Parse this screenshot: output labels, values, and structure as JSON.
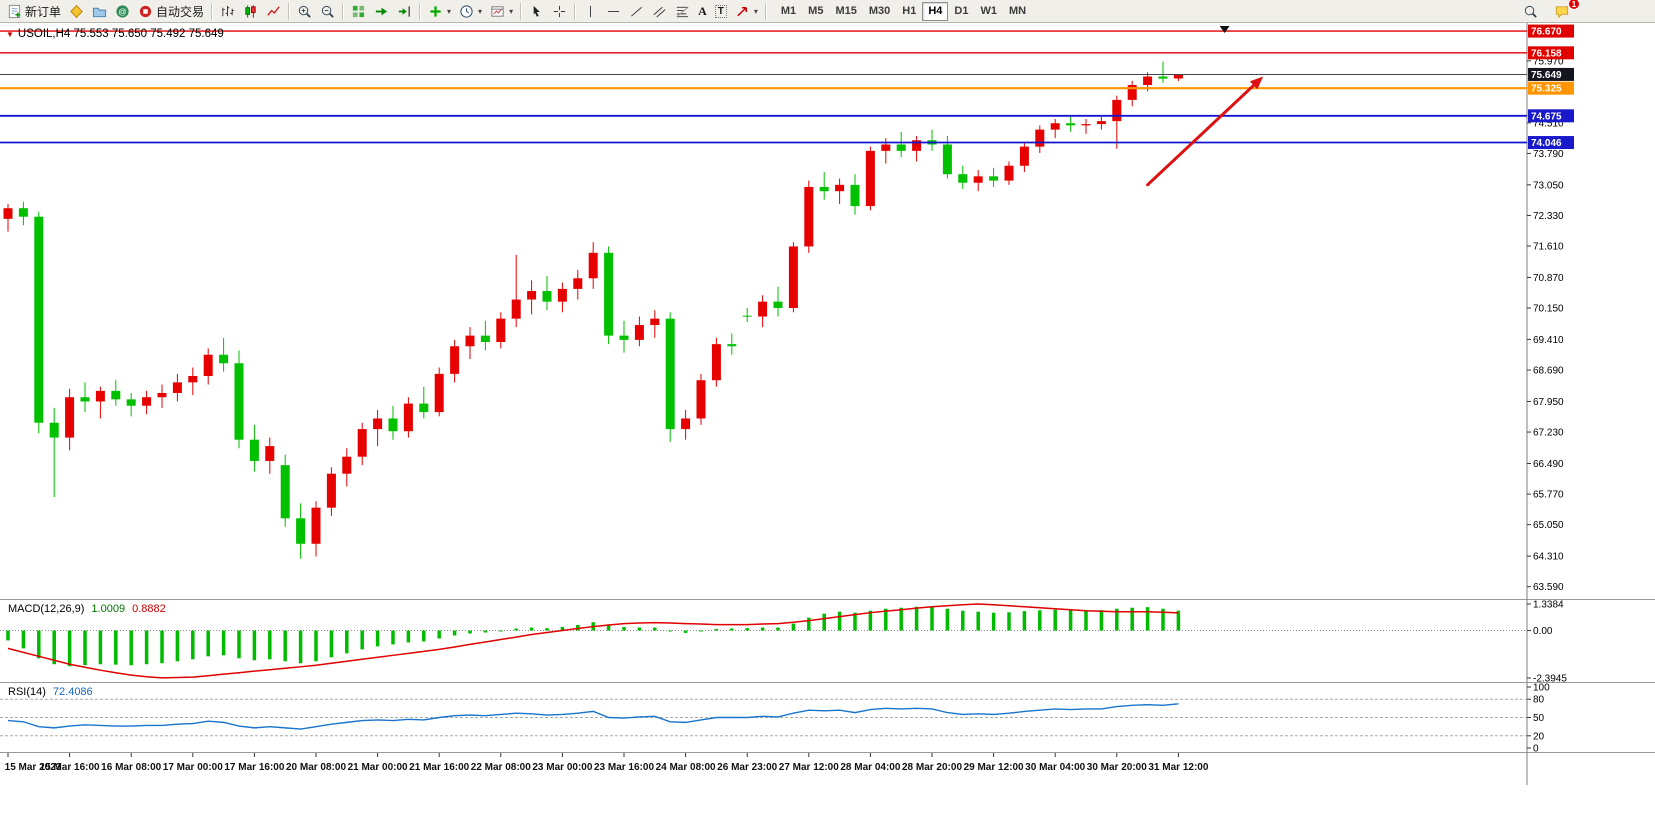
{
  "toolbar": {
    "new_order_label": "新订单",
    "autotrading_label": "自动交易",
    "timeframes": [
      "M1",
      "M5",
      "M15",
      "M30",
      "H1",
      "H4",
      "D1",
      "W1",
      "MN"
    ],
    "active_timeframe": "H4",
    "chat_badge": "1"
  },
  "chart_data": {
    "type": "candlestick",
    "symbol": "USOIL",
    "timeframe": "H4",
    "ohlc_header": "USOIL,H4 75.553 75.650 75.492 75.649",
    "colors": {
      "up": "#e60000",
      "down": "#00c000",
      "macd_hist": "#00bb00",
      "macd_signal": "#e00000",
      "rsi": "#1874cd",
      "arrow": "#dd1111"
    },
    "price_axis": {
      "view_max": 76.86,
      "view_min": 63.3,
      "ticks": [
        "75.970",
        "74.510",
        "73.790",
        "73.050",
        "72.330",
        "71.610",
        "70.870",
        "70.150",
        "69.410",
        "68.690",
        "67.950",
        "67.230",
        "66.490",
        "65.770",
        "65.050",
        "64.310",
        "63.590"
      ]
    },
    "price_badges": [
      {
        "text": "76.670",
        "value": 76.67,
        "bg": "#e00000"
      },
      {
        "text": "76.158",
        "value": 76.158,
        "bg": "#e00000"
      },
      {
        "text": "75.649",
        "value": 75.649,
        "bg": "#15151f"
      },
      {
        "text": "75.325",
        "value": 75.325,
        "bg": "#ff9500"
      },
      {
        "text": "74.675",
        "value": 74.675,
        "bg": "#1919cc"
      },
      {
        "text": "74.046",
        "value": 74.046,
        "bg": "#1919cc"
      }
    ],
    "levels": [
      {
        "value": 76.67,
        "color": "#e00000",
        "width": 1.4
      },
      {
        "value": 76.158,
        "color": "#e00000",
        "width": 1.4
      },
      {
        "value": 75.649,
        "color": "#444450",
        "width": 1
      },
      {
        "value": 75.325,
        "color": "#ff9500",
        "width": 2.2
      },
      {
        "value": 74.675,
        "color": "#1414cc",
        "width": 1.8
      },
      {
        "value": 74.046,
        "color": "#1414cc",
        "width": 1.8
      }
    ],
    "candles": [
      [
        72.25,
        72.6,
        71.95,
        72.5
      ],
      [
        72.5,
        72.65,
        72.1,
        72.3
      ],
      [
        72.3,
        72.42,
        67.2,
        67.45
      ],
      [
        67.45,
        67.8,
        65.7,
        67.1
      ],
      [
        67.1,
        68.25,
        66.8,
        68.05
      ],
      [
        68.05,
        68.4,
        67.7,
        67.95
      ],
      [
        67.95,
        68.3,
        67.55,
        68.2
      ],
      [
        68.2,
        68.45,
        67.85,
        68.0
      ],
      [
        68.0,
        68.15,
        67.6,
        67.85
      ],
      [
        67.85,
        68.2,
        67.65,
        68.05
      ],
      [
        68.05,
        68.35,
        67.8,
        68.15
      ],
      [
        68.15,
        68.6,
        67.95,
        68.4
      ],
      [
        68.4,
        68.75,
        68.1,
        68.55
      ],
      [
        68.55,
        69.2,
        68.35,
        69.05
      ],
      [
        69.05,
        69.45,
        68.65,
        68.85
      ],
      [
        68.85,
        69.15,
        66.85,
        67.05
      ],
      [
        67.05,
        67.4,
        66.3,
        66.55
      ],
      [
        66.55,
        67.1,
        66.25,
        66.9
      ],
      [
        66.45,
        66.7,
        65.0,
        65.2
      ],
      [
        65.2,
        65.55,
        64.25,
        64.6
      ],
      [
        64.6,
        65.6,
        64.3,
        65.45
      ],
      [
        65.45,
        66.4,
        65.25,
        66.25
      ],
      [
        66.25,
        66.85,
        65.95,
        66.65
      ],
      [
        66.65,
        67.45,
        66.45,
        67.3
      ],
      [
        67.3,
        67.75,
        66.9,
        67.55
      ],
      [
        67.55,
        67.85,
        67.05,
        67.25
      ],
      [
        67.25,
        68.05,
        67.1,
        67.9
      ],
      [
        67.9,
        68.3,
        67.55,
        67.7
      ],
      [
        67.7,
        68.75,
        67.6,
        68.6
      ],
      [
        68.6,
        69.4,
        68.4,
        69.25
      ],
      [
        69.25,
        69.7,
        68.95,
        69.5
      ],
      [
        69.5,
        69.85,
        69.15,
        69.35
      ],
      [
        69.35,
        70.05,
        69.2,
        69.9
      ],
      [
        69.9,
        71.4,
        69.7,
        70.35
      ],
      [
        70.35,
        70.8,
        70.0,
        70.55
      ],
      [
        70.55,
        70.9,
        70.1,
        70.3
      ],
      [
        70.3,
        70.75,
        70.05,
        70.6
      ],
      [
        70.6,
        71.05,
        70.35,
        70.85
      ],
      [
        70.85,
        71.7,
        70.6,
        71.45
      ],
      [
        71.45,
        71.6,
        69.3,
        69.5
      ],
      [
        69.5,
        69.85,
        69.1,
        69.4
      ],
      [
        69.4,
        69.95,
        69.25,
        69.75
      ],
      [
        69.75,
        70.1,
        69.45,
        69.9
      ],
      [
        69.9,
        70.05,
        67.0,
        67.3
      ],
      [
        67.3,
        67.75,
        67.05,
        67.55
      ],
      [
        67.55,
        68.6,
        67.4,
        68.45
      ],
      [
        68.45,
        69.45,
        68.3,
        69.3
      ],
      [
        69.3,
        69.55,
        69.05,
        69.25
      ],
      [
        69.97,
        70.15,
        69.82,
        69.95
      ],
      [
        69.95,
        70.45,
        69.7,
        70.3
      ],
      [
        70.3,
        70.65,
        69.95,
        70.15
      ],
      [
        70.15,
        71.7,
        70.05,
        71.6
      ],
      [
        71.6,
        73.15,
        71.45,
        73.0
      ],
      [
        73.0,
        73.35,
        72.7,
        72.9
      ],
      [
        72.9,
        73.2,
        72.6,
        73.05
      ],
      [
        73.05,
        73.3,
        72.35,
        72.55
      ],
      [
        72.55,
        73.95,
        72.45,
        73.85
      ],
      [
        73.85,
        74.15,
        73.55,
        74.0
      ],
      [
        74.0,
        74.3,
        73.7,
        73.85
      ],
      [
        73.85,
        74.2,
        73.6,
        74.1
      ],
      [
        74.1,
        74.35,
        73.85,
        74.0
      ],
      [
        74.0,
        74.2,
        73.2,
        73.3
      ],
      [
        73.3,
        73.5,
        72.95,
        73.1
      ],
      [
        73.1,
        73.4,
        72.9,
        73.25
      ],
      [
        73.25,
        73.45,
        73.0,
        73.15
      ],
      [
        73.15,
        73.6,
        73.05,
        73.5
      ],
      [
        73.5,
        74.05,
        73.35,
        73.95
      ],
      [
        73.95,
        74.45,
        73.8,
        74.35
      ],
      [
        74.35,
        74.6,
        74.15,
        74.5
      ],
      [
        74.5,
        74.65,
        74.3,
        74.45
      ],
      [
        74.45,
        74.6,
        74.25,
        74.48
      ],
      [
        74.48,
        74.65,
        74.35,
        74.55
      ],
      [
        74.55,
        75.15,
        73.9,
        75.05
      ],
      [
        75.05,
        75.5,
        74.9,
        75.4
      ],
      [
        75.4,
        75.7,
        75.25,
        75.6
      ],
      [
        75.6,
        75.95,
        75.45,
        75.55
      ],
      [
        75.553,
        75.65,
        75.492,
        75.649
      ]
    ],
    "label_every": 4,
    "time_labels": [
      "15 Mar 2023",
      "15 Mar 16:00",
      "16 Mar 08:00",
      "17 Mar 00:00",
      "17 Mar 16:00",
      "20 Mar 08:00",
      "21 Mar 00:00",
      "21 Mar 16:00",
      "22 Mar 08:00",
      "23 Mar 00:00",
      "23 Mar 16:00",
      "24 Mar 08:00",
      "26 Mar 23:00",
      "27 Mar 12:00",
      "28 Mar 04:00",
      "28 Mar 20:00",
      "29 Mar 12:00",
      "30 Mar 04:00",
      "30 Mar 20:00",
      "31 Mar 12:00"
    ],
    "arrow": {
      "from_index": 74,
      "from_price": 73.05,
      "to_index": 81.5,
      "to_price": 75.6
    },
    "shift_marker_index": 79,
    "macd": {
      "name": "MACD(12,26,9)",
      "value_main": "1.0009",
      "value_signal": "0.8882",
      "max": 1.3384,
      "min": -2.3945,
      "axis": [
        "1.3384",
        "0.00",
        "-2.3945"
      ],
      "hist": [
        -0.5,
        -0.9,
        -1.4,
        -1.7,
        -1.8,
        -1.75,
        -1.7,
        -1.72,
        -1.75,
        -1.7,
        -1.65,
        -1.55,
        -1.45,
        -1.3,
        -1.25,
        -1.4,
        -1.5,
        -1.45,
        -1.55,
        -1.65,
        -1.55,
        -1.35,
        -1.15,
        -0.95,
        -0.8,
        -0.7,
        -0.6,
        -0.55,
        -0.4,
        -0.25,
        -0.15,
        -0.1,
        -0.05,
        0.1,
        0.15,
        0.12,
        0.18,
        0.28,
        0.42,
        0.3,
        0.18,
        0.15,
        0.15,
        -0.05,
        -0.12,
        -0.05,
        0.08,
        0.1,
        0.12,
        0.15,
        0.15,
        0.35,
        0.65,
        0.85,
        0.95,
        0.9,
        1.0,
        1.1,
        1.15,
        1.2,
        1.2,
        1.1,
        1.0,
        0.95,
        0.9,
        0.92,
        0.98,
        1.02,
        1.05,
        1.03,
        1.02,
        1.03,
        1.1,
        1.15,
        1.18,
        1.1,
        1.0009
      ],
      "signal": [
        -0.9,
        -1.1,
        -1.3,
        -1.5,
        -1.7,
        -1.85,
        -2.0,
        -2.13,
        -2.25,
        -2.33,
        -2.39,
        -2.37,
        -2.35,
        -2.28,
        -2.2,
        -2.13,
        -2.05,
        -1.98,
        -1.9,
        -1.83,
        -1.75,
        -1.65,
        -1.55,
        -1.45,
        -1.35,
        -1.25,
        -1.15,
        -1.05,
        -0.95,
        -0.83,
        -0.7,
        -0.58,
        -0.45,
        -0.33,
        -0.2,
        -0.1,
        0.0,
        0.1,
        0.2,
        0.28,
        0.35,
        0.38,
        0.4,
        0.38,
        0.35,
        0.33,
        0.3,
        0.3,
        0.3,
        0.33,
        0.35,
        0.42,
        0.5,
        0.6,
        0.7,
        0.8,
        0.9,
        0.98,
        1.05,
        1.13,
        1.2,
        1.25,
        1.3,
        1.3384,
        1.3,
        1.25,
        1.2,
        1.15,
        1.1,
        1.05,
        1.0,
        0.97,
        0.95,
        0.95,
        0.95,
        0.92,
        0.8882
      ]
    },
    "rsi": {
      "name": "RSI(14)",
      "value": "72.4086",
      "axis": [
        "100",
        "80",
        "50",
        "20",
        "0"
      ],
      "levels": [
        80,
        50,
        20
      ],
      "values": [
        45,
        43,
        35,
        33,
        36,
        38,
        37,
        36,
        36,
        37,
        37,
        39,
        40,
        44,
        42,
        36,
        33,
        35,
        33,
        31,
        35,
        39,
        42,
        45,
        46,
        45,
        47,
        46,
        50,
        53,
        54,
        53,
        55,
        57,
        56,
        54,
        55,
        57,
        60,
        50,
        49,
        51,
        52,
        43,
        42,
        46,
        50,
        50,
        50,
        52,
        51,
        57,
        62,
        61,
        62,
        58,
        63,
        65,
        64,
        65,
        64,
        58,
        55,
        56,
        55,
        57,
        60,
        62,
        64,
        63,
        64,
        64,
        68,
        70,
        71,
        70,
        72.4086
      ]
    }
  }
}
